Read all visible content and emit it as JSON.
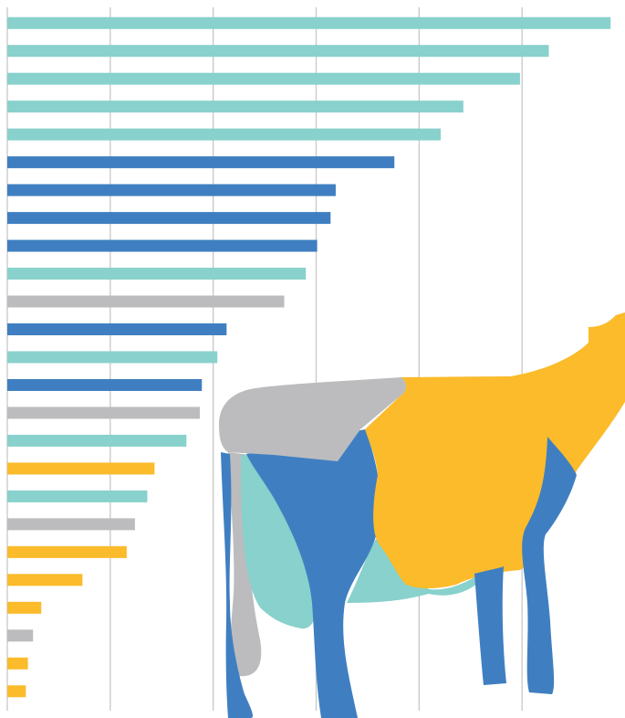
{
  "chart_data": {
    "type": "barh",
    "values": [
      5.86,
      5.26,
      4.98,
      4.43,
      4.21,
      3.76,
      3.19,
      3.14,
      3.01,
      2.9,
      2.69,
      2.13,
      2.04,
      1.89,
      1.87,
      1.74,
      1.43,
      1.36,
      1.24,
      1.16,
      0.73,
      0.33,
      0.25,
      0.2,
      0.18
    ],
    "colors": [
      "#88d1cc",
      "#88d1cc",
      "#88d1cc",
      "#88d1cc",
      "#88d1cc",
      "#3f7fc1",
      "#3f7fc1",
      "#3f7fc1",
      "#3f7fc1",
      "#88d1cc",
      "#bcbcbe",
      "#3f7fc1",
      "#88d1cc",
      "#3f7fc1",
      "#bcbcbe",
      "#88d1cc",
      "#fbbb2b",
      "#88d1cc",
      "#bcbcbe",
      "#fbbb2b",
      "#fbbb2b",
      "#fbbb2b",
      "#bcbcbe",
      "#fbbb2b",
      "#fbbb2b"
    ],
    "xlim": [
      0,
      6
    ],
    "xticks": [
      0,
      1,
      2,
      3,
      4,
      5
    ],
    "grid": true
  }
}
